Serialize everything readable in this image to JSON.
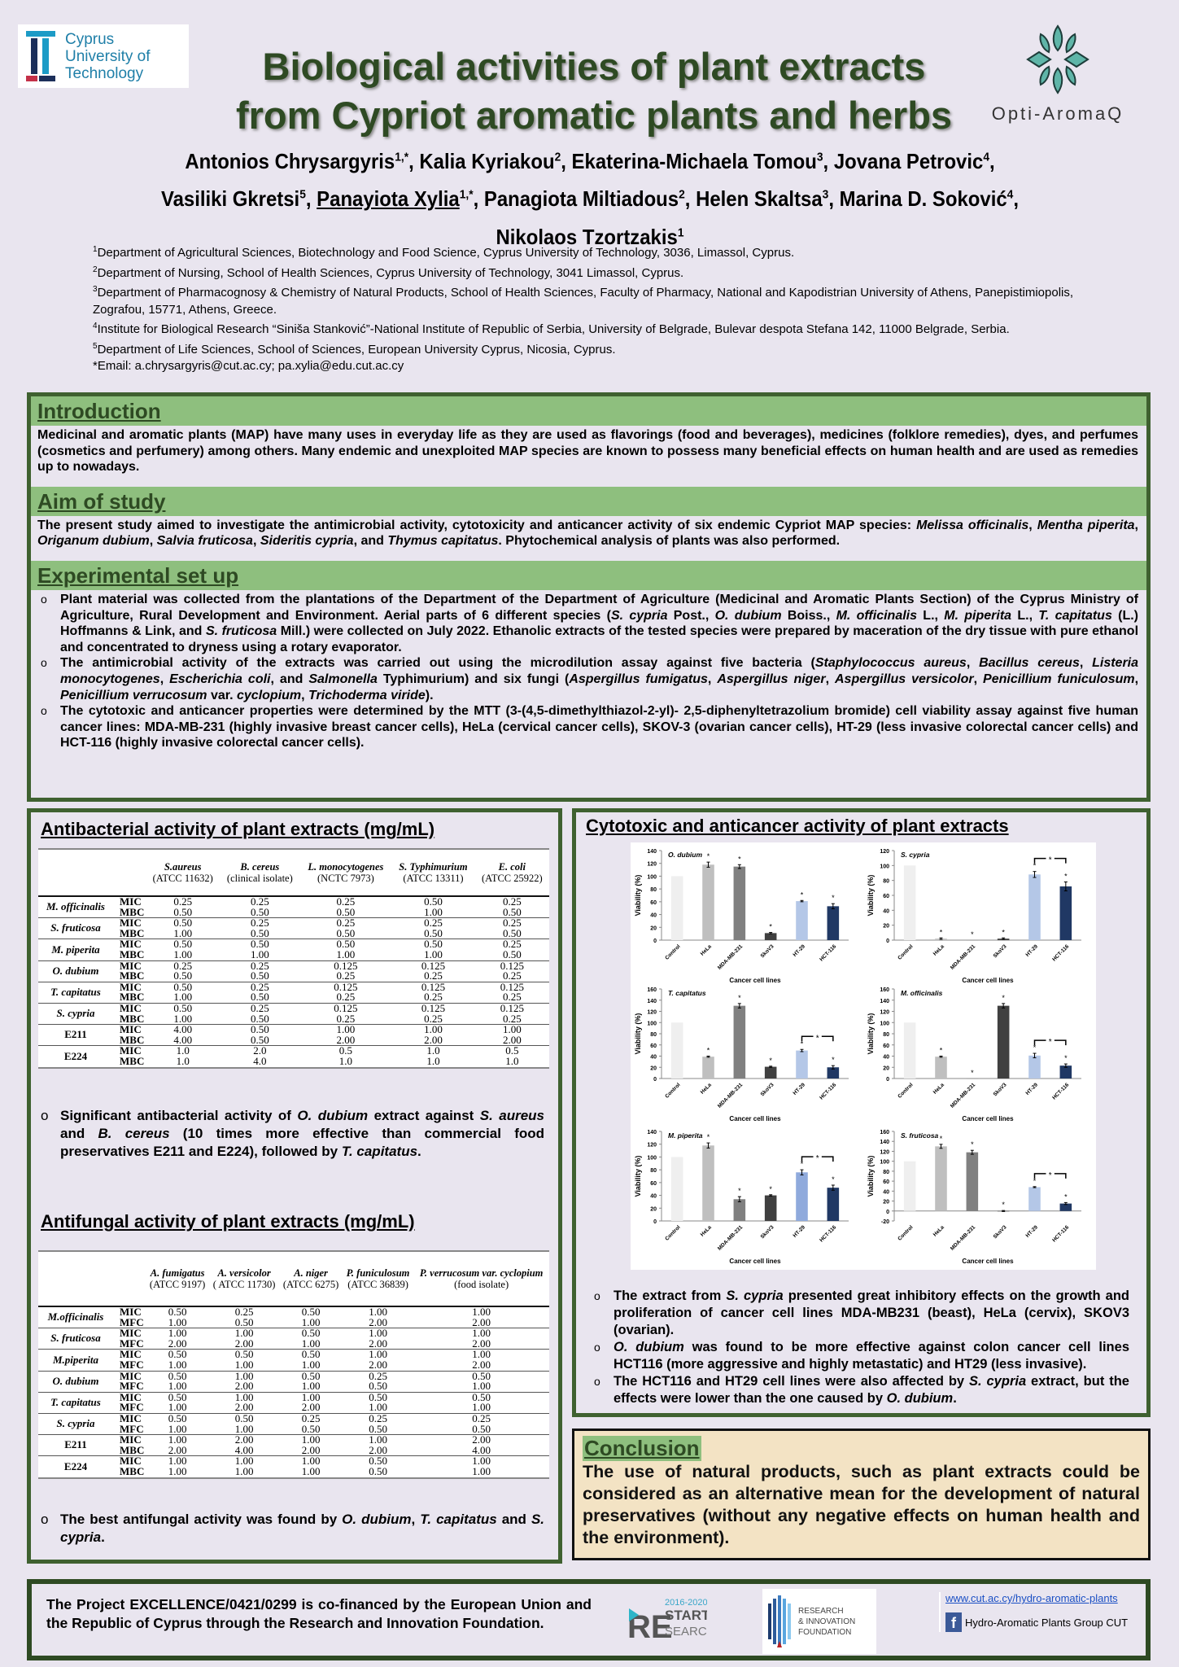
{
  "logos": {
    "cut": {
      "lines": [
        "Cyprus",
        "University of",
        "Technology"
      ]
    },
    "opti": {
      "name": "Opti-AromaQ"
    },
    "restart": {
      "text": [
        "2016-2020",
        "RE",
        "START",
        "SEARCH"
      ]
    },
    "rif": {
      "lines": [
        "RESEARCH",
        "& INNOVATION",
        "FOUNDATION"
      ]
    }
  },
  "title": [
    "Biological activities of plant extracts",
    "from Cypriot aromatic plants and herbs"
  ],
  "authors": [
    {
      "name": "Antonios Chrysargyris",
      "sup": "1,*"
    },
    {
      "name": "Kalia Kyriakou",
      "sup": "2"
    },
    {
      "name": "Ekaterina-Michaela Tomou",
      "sup": "3"
    },
    {
      "name": "Jovana Petrovic",
      "sup": "4"
    },
    {
      "name": "Vasiliki Gkretsi",
      "sup": "5"
    },
    {
      "name": "Panayiota Xylia",
      "sup": "1,*",
      "underline": true
    },
    {
      "name": "Panagiota Miltiadous",
      "sup": "2"
    },
    {
      "name": "Helen Skaltsa",
      "sup": "3"
    },
    {
      "name": "Marina D. Soković",
      "sup": "4"
    },
    {
      "name": "Nikolaos Tzortzakis",
      "sup": "1"
    }
  ],
  "affiliations": [
    {
      "num": "1",
      "text": "Department of Agricultural Sciences, Biotechnology and Food Science, Cyprus University of Technology, 3036, Limassol, Cyprus."
    },
    {
      "num": "2",
      "text": "Department of Nursing, School of Health Sciences, Cyprus University of Technology, 3041 Limassol, Cyprus."
    },
    {
      "num": "3",
      "text": "Department of Pharmacognosy & Chemistry of Natural Products, School of Health Sciences, Faculty of Pharmacy, National and Kapodistrian University of Athens, Panepistimiopolis, Zografou, 15771, Athens, Greece."
    },
    {
      "num": "4",
      "text": "Institute for Biological Research “Siniša Stanković”-National Institute of Republic of Serbia, University of Belgrade, Bulevar despota Stefana 142, 11000 Belgrade, Serbia."
    },
    {
      "num": "5",
      "text": "Department of Life Sciences, School of Sciences, European University Cyprus, Nicosia, Cyprus."
    }
  ],
  "email": "*Email: a.chrysargyris@cut.ac.cy; pa.xylia@edu.cut.ac.cy",
  "introduction": {
    "heading": "Introduction",
    "text": [
      "Medicinal and aromatic plants (MAP) have many uses in everyday life as they are used as flavorings (food and beverages), medicines (folklore remedies), dyes, and perfumes (cosmetics and perfumery) among others. Many endemic and unexploited MAP species are known to possess many beneficial effects on human health and are used as remedies up to nowadays."
    ]
  },
  "aim": {
    "heading": "Aim of study",
    "text": [
      "The present study aimed to investigate the antimicrobial activity, cytotoxicity and anticancer activity of six endemic Cypriot MAP species: ",
      "Melissa officinalis",
      ", ",
      "Mentha piperita",
      ", ",
      "Origanum dubium",
      ", ",
      "Salvia fruticosa",
      ", ",
      "Sideritis cypria",
      ", and ",
      "Thymus capitatus",
      ". Phytochemical analysis of plants was also performed."
    ]
  },
  "experimental": {
    "heading": "Experimental set up",
    "bullets": [
      [
        "Plant material was collected from the plantations of the Department of the Department of Agriculture (Medicinal and Aromatic Plants Section) of the Cyprus Ministry of Agriculture, Rural Development and Environment. Aerial parts of 6 different species (",
        "S. cypria",
        " Post., ",
        "O. dubium",
        " Boiss., ",
        "M. officinalis",
        " L., ",
        "M. piperita",
        " L., ",
        "T. capitatus",
        " (L.) Hoffmanns & Link, and ",
        "S. fruticosa",
        " Mill.) were collected on July 2022. Ethanolic extracts of the tested species were prepared by maceration of the dry tissue with pure ethanol and concentrated to dryness using a rotary evaporator."
      ],
      [
        "The antimicrobial activity of the extracts was carried out using the microdilution assay against five bacteria (",
        "Staphylococcus aureus",
        ", ",
        "Bacillus cereus",
        ", ",
        "Listeria monocytogenes",
        ", ",
        "Escherichia coli",
        ", and ",
        "Salmonella",
        " Typhimurium) and six fungi (",
        "Aspergillus fumigatus",
        ", ",
        "Aspergillus niger",
        ", ",
        "Aspergillus versicolor",
        ", ",
        "Penicillium funiculosum",
        ", ",
        "Penicillium verrucosum",
        " var. ",
        "cyclopium",
        ", ",
        "Trichoderma viride",
        ")."
      ],
      [
        "The cytotoxic and anticancer properties were determined by the MTT (3-(4,5-dimethylthiazol-2-yl)- 2,5-diphenyltetrazolium bromide) cell viability assay against five human cancer lines: MDA-MB-231 (highly invasive breast cancer cells), HeLa (cervical cancer cells), SKOV-3 (ovarian cancer cells), HT-29 (less invasive colorectal cancer cells) and HCT-116 (highly invasive colorectal cancer cells)."
      ]
    ]
  },
  "antibacterial": {
    "title": "Antibacterial activity of plant extracts (mg/mL)",
    "columns": [
      {
        "name": "S.aureus",
        "sub": "(ATCC 11632)"
      },
      {
        "name": "B. cereus",
        "sub": "(clinical isolate)"
      },
      {
        "name": "L. monocytogenes",
        "sub": "(NCTC 7973)"
      },
      {
        "name": "S. Typhimurium",
        "sub": "(ATCC 13311)"
      },
      {
        "name": "E. coli",
        "sub": "(ATCC 25922)"
      }
    ],
    "rows": [
      {
        "species": "M. officinalis",
        "italic": true,
        "data": [
          [
            "MIC",
            "0.25",
            "0.25",
            "0.25",
            "0.50",
            "0.25"
          ],
          [
            "MBC",
            "0.50",
            "0.50",
            "0.50",
            "1.00",
            "0.50"
          ]
        ]
      },
      {
        "species": "S. fruticosa",
        "italic": true,
        "data": [
          [
            "MIC",
            "0.50",
            "0.25",
            "0.25",
            "0.25",
            "0.25"
          ],
          [
            "MBC",
            "1.00",
            "0.50",
            "0.50",
            "0.50",
            "0.50"
          ]
        ]
      },
      {
        "species": "M. piperita",
        "italic": true,
        "data": [
          [
            "MIC",
            "0.50",
            "0.50",
            "0.50",
            "0.50",
            "0.25"
          ],
          [
            "MBC",
            "1.00",
            "1.00",
            "1.00",
            "1.00",
            "0.50"
          ]
        ]
      },
      {
        "species": "O. dubium",
        "italic": true,
        "data": [
          [
            "MIC",
            "0.25",
            "0.25",
            "0.125",
            "0.125",
            "0.125"
          ],
          [
            "MBC",
            "0.50",
            "0.50",
            "0.25",
            "0.25",
            "0.25"
          ]
        ]
      },
      {
        "species": "T. capitatus",
        "italic": true,
        "data": [
          [
            "MIC",
            "0.50",
            "0.25",
            "0.125",
            "0.125",
            "0.125"
          ],
          [
            "MBC",
            "1.00",
            "0.50",
            "0.25",
            "0.25",
            "0.25"
          ]
        ]
      },
      {
        "species": "S. cypria",
        "italic": true,
        "data": [
          [
            "MIC",
            "0.50",
            "0.25",
            "0.125",
            "0.125",
            "0.125"
          ],
          [
            "MBC",
            "1.00",
            "0.50",
            "0.25",
            "0.25",
            "0.25"
          ]
        ]
      },
      {
        "species": "E211",
        "italic": false,
        "data": [
          [
            "MIC",
            "4.00",
            "0.50",
            "1.00",
            "1.00",
            "1.00"
          ],
          [
            "MBC",
            "4.00",
            "0.50",
            "2.00",
            "2.00",
            "2.00"
          ]
        ]
      },
      {
        "species": "E224",
        "italic": false,
        "data": [
          [
            "MIC",
            "1.0",
            "2.0",
            "0.5",
            "1.0",
            "0.5"
          ],
          [
            "MBC",
            "1.0",
            "4.0",
            "1.0",
            "1.0",
            "1.0"
          ]
        ]
      }
    ],
    "note": [
      "Significant antibacterial activity of ",
      "O. dubium",
      " extract against ",
      "S. aureus",
      " and ",
      "B. cereus",
      " (10 times more effective than commercial food preservatives E211 and E224), followed by ",
      "T. capitatus",
      "."
    ]
  },
  "antifungal": {
    "title": "Antifungal activity of plant extracts (mg/mL)",
    "columns": [
      {
        "name": "A. fumigatus",
        "sub": "(ATCC 9197)"
      },
      {
        "name": "A. versicolor",
        "sub": "( ATCC 11730)"
      },
      {
        "name": "A. niger",
        "sub": "(ATCC 6275)"
      },
      {
        "name": "P. funiculosum",
        "sub": "(ATCC 36839)"
      },
      {
        "name": "P. verrucosum var. cyclopium",
        "sub": "(food isolate)"
      }
    ],
    "rows": [
      {
        "species": "M.officinalis",
        "italic": true,
        "data": [
          [
            "MIC",
            "0.50",
            "0.25",
            "0.50",
            "1.00",
            "1.00"
          ],
          [
            "MFC",
            "1.00",
            "0.50",
            "1.00",
            "2.00",
            "2.00"
          ]
        ]
      },
      {
        "species": "S. fruticosa",
        "italic": true,
        "data": [
          [
            "MIC",
            "1.00",
            "1.00",
            "0.50",
            "1.00",
            "1.00"
          ],
          [
            "MFC",
            "2.00",
            "2.00",
            "1.00",
            "2.00",
            "2.00"
          ]
        ]
      },
      {
        "species": "M.piperita",
        "italic": true,
        "data": [
          [
            "MIC",
            "0.50",
            "0.50",
            "0.50",
            "1.00",
            "1.00"
          ],
          [
            "MFC",
            "1.00",
            "1.00",
            "1.00",
            "2.00",
            "2.00"
          ]
        ]
      },
      {
        "species": "O. dubium",
        "italic": true,
        "data": [
          [
            "MIC",
            "0.50",
            "1.00",
            "0.50",
            "0.25",
            "0.50"
          ],
          [
            "MFC",
            "1.00",
            "2.00",
            "1.00",
            "0.50",
            "1.00"
          ]
        ]
      },
      {
        "species": "T. capitatus",
        "italic": true,
        "data": [
          [
            "MIC",
            "0.50",
            "1.00",
            "1.00",
            "0.50",
            "0.50"
          ],
          [
            "MFC",
            "1.00",
            "2.00",
            "2.00",
            "1.00",
            "1.00"
          ]
        ]
      },
      {
        "species": "S. cypria",
        "italic": true,
        "data": [
          [
            "MIC",
            "0.50",
            "0.50",
            "0.25",
            "0.25",
            "0.25"
          ],
          [
            "MFC",
            "1.00",
            "1.00",
            "0.50",
            "0.50",
            "0.50"
          ]
        ]
      },
      {
        "species": "E211",
        "italic": false,
        "data": [
          [
            "MIC",
            "1.00",
            "2.00",
            "1.00",
            "1.00",
            "2.00"
          ],
          [
            "MBC",
            "2.00",
            "4.00",
            "2.00",
            "2.00",
            "4.00"
          ]
        ]
      },
      {
        "species": "E224",
        "italic": false,
        "data": [
          [
            "MIC",
            "1.00",
            "1.00",
            "1.00",
            "0.50",
            "1.00"
          ],
          [
            "MBC",
            "1.00",
            "1.00",
            "1.00",
            "0.50",
            "1.00"
          ]
        ]
      }
    ],
    "note": [
      "The best antifungal activity was found by ",
      "O. dubium",
      ", ",
      "T. capitatus",
      " and ",
      "S. cypria",
      "."
    ]
  },
  "cytotoxic": {
    "title": "Cytotoxic and anticancer activity of plant extracts",
    "bullets": [
      [
        " The extract from ",
        "S. cypria",
        " presented great inhibitory effects on the growth and proliferation of cancer cell lines MDA-MB231 (beast), HeLa (cervix), SKOV3 (ovarian)."
      ],
      [
        "",
        "O. dubium",
        " was found to be more effective against colon cancer cell lines HCT116 (more aggressive and highly metastatic) and HT29 (less invasive)."
      ],
      [
        "The HCT116 and HT29 cell lines were also affected by ",
        "S. cypria",
        " extract, but the effects were lower than the one caused by ",
        "O. dubium",
        "."
      ]
    ]
  },
  "chart_data": [
    {
      "type": "bar",
      "title": "O. dubium",
      "xlabel": "Cancer cell lines",
      "ylabel": "Viability (%)",
      "categories": [
        "Control",
        "HeLa",
        "MDA-MB-231",
        "SkoV3",
        "HT-29",
        "HCT-116"
      ],
      "values": [
        100,
        118,
        115,
        11,
        61,
        53
      ],
      "errors": [
        0,
        4,
        3,
        1,
        1,
        4
      ],
      "significant": [
        false,
        true,
        true,
        true,
        true,
        true
      ],
      "bracket_ht29_hct116": false,
      "ylim": [
        0,
        140
      ],
      "ytick_step": 20,
      "colors": [
        "#efefef",
        "#bfbfbf",
        "#808080",
        "#404040",
        "#b4c7e7",
        "#203864"
      ]
    },
    {
      "type": "bar",
      "title": "S. cypria",
      "xlabel": "Cancer cell lines",
      "ylabel": "Viability (%)",
      "categories": [
        "Control",
        "HeLa",
        "MDA-MB-231",
        "SkoV3",
        "HT-29",
        "HCT-116"
      ],
      "values": [
        100,
        2,
        0,
        2,
        88,
        72
      ],
      "errors": [
        0,
        1,
        0,
        1,
        4,
        6
      ],
      "significant": [
        false,
        true,
        true,
        true,
        true,
        true
      ],
      "bracket_ht29_hct116": true,
      "ylim": [
        0,
        120
      ],
      "ytick_step": 20,
      "colors": [
        "#efefef",
        "#bfbfbf",
        "#808080",
        "#404040",
        "#b4c7e7",
        "#203864"
      ]
    },
    {
      "type": "bar",
      "title": "T. capitatus",
      "xlabel": "Cancer cell lines",
      "ylabel": "Viability (%)",
      "categories": [
        "Control",
        "HeLa",
        "MDA-MB-231",
        "SkoV3",
        "HT-29",
        "HCT-116"
      ],
      "values": [
        100,
        39,
        130,
        21,
        50,
        20
      ],
      "errors": [
        0,
        1,
        4,
        1,
        2,
        3
      ],
      "significant": [
        false,
        true,
        true,
        true,
        true,
        true
      ],
      "bracket_ht29_hct116": true,
      "ylim": [
        0,
        160
      ],
      "ytick_step": 20,
      "colors": [
        "#efefef",
        "#bfbfbf",
        "#808080",
        "#404040",
        "#b4c7e7",
        "#203864"
      ]
    },
    {
      "type": "bar",
      "title": "M. officinalis",
      "xlabel": "Cancer cell lines",
      "ylabel": "Viability (%)",
      "categories": [
        "Control",
        "HeLa",
        "MDA-MB-231",
        "SkoV3",
        "HT-29",
        "HCT-116"
      ],
      "values": [
        100,
        39,
        0,
        130,
        41,
        23
      ],
      "errors": [
        0,
        1,
        0,
        4,
        4,
        3
      ],
      "significant": [
        false,
        true,
        true,
        true,
        true,
        true
      ],
      "bracket_ht29_hct116": true,
      "ylim": [
        0,
        160
      ],
      "ytick_step": 20,
      "colors": [
        "#efefef",
        "#bfbfbf",
        "#808080",
        "#404040",
        "#b4c7e7",
        "#203864"
      ]
    },
    {
      "type": "bar",
      "title": "M. piperita",
      "xlabel": "Cancer cell lines",
      "ylabel": "Viability (%)",
      "categories": [
        "Control",
        "HeLa",
        "MDA-MB-231",
        "SkoV3",
        "HT-29",
        "HCT-116"
      ],
      "values": [
        100,
        118,
        34,
        40,
        76,
        52
      ],
      "errors": [
        0,
        4,
        4,
        1,
        4,
        4
      ],
      "significant": [
        false,
        true,
        true,
        true,
        true,
        true
      ],
      "bracket_ht29_hct116": true,
      "ylim": [
        0,
        140
      ],
      "ytick_step": 20,
      "colors": [
        "#efefef",
        "#bfbfbf",
        "#808080",
        "#404040",
        "#8faadc",
        "#203864"
      ]
    },
    {
      "type": "bar",
      "title": "S. fruticosa",
      "xlabel": "Cancer cell lines",
      "ylabel": "Viability (%)",
      "categories": [
        "Control",
        "HeLa",
        "MDA-MB-231",
        "SkoV3",
        "HT-29",
        "HCT-116"
      ],
      "values": [
        100,
        130,
        118,
        0,
        48,
        15
      ],
      "errors": [
        0,
        4,
        4,
        1,
        1,
        2
      ],
      "significant": [
        false,
        true,
        true,
        true,
        true,
        true
      ],
      "bracket_ht29_hct116": true,
      "ylim": [
        -20,
        160
      ],
      "ytick_step": 20,
      "colors": [
        "#efefef",
        "#bfbfbf",
        "#808080",
        "#404040",
        "#b4c7e7",
        "#203864"
      ]
    }
  ],
  "conclusion": {
    "heading": "Conclusion",
    "text": "The use of natural products, such as plant extracts could be considered as an alternative mean for the development of natural preservatives (without any negative effects on human health and the environment)."
  },
  "footer": {
    "text": "The Project EXCELLENCE/0421/0299 is co-financed by the European Union and the Republic of Cyprus through the Research and Innovation Foundation.",
    "link": "www.cut.ac.cy/hydro-aromatic-plants",
    "facebook": "Hydro-Aromatic Plants Group CUT",
    "facebook_icon": "facebook-icon"
  },
  "colors": {
    "title": "#2e4a23",
    "section_bar": "#8ebf7e",
    "border": "#3f6130",
    "background": "#e9e5ef",
    "conclusion_bg": "#f3e3c4"
  }
}
